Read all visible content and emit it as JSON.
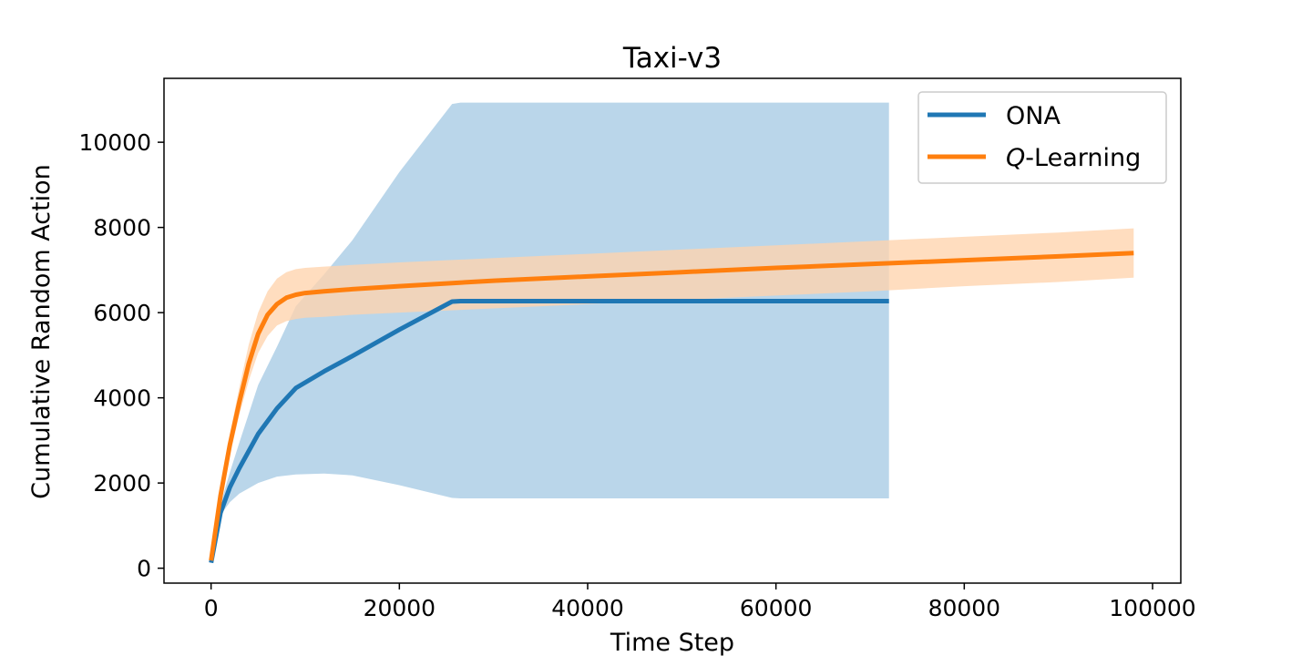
{
  "chart_data": {
    "type": "line",
    "title": "Taxi-v3",
    "xlabel": "Time Step",
    "ylabel": "Cumulative Random Action",
    "xlim": [
      -5000,
      103000
    ],
    "ylim": [
      -350,
      11500
    ],
    "xticks": [
      0,
      20000,
      40000,
      60000,
      80000,
      100000
    ],
    "yticks": [
      0,
      2000,
      4000,
      6000,
      8000,
      10000
    ],
    "legend": "top-right",
    "grid": false,
    "series": [
      {
        "name": "ONA",
        "color": "#1f77b4",
        "band_color": "#bad6ea",
        "x": [
          0,
          1000,
          2000,
          3000,
          5000,
          7000,
          9000,
          12000,
          15000,
          20000,
          25600,
          26500,
          30000,
          40000,
          50000,
          60000,
          72000
        ],
        "y": [
          130,
          1300,
          1900,
          2350,
          3150,
          3750,
          4230,
          4620,
          4980,
          5600,
          6260,
          6270,
          6270,
          6270,
          6270,
          6270,
          6270
        ],
        "lower": [
          130,
          1250,
          1550,
          1750,
          2000,
          2150,
          2200,
          2220,
          2180,
          1950,
          1650,
          1640,
          1640,
          1640,
          1640,
          1640,
          1640
        ],
        "upper": [
          130,
          1500,
          2250,
          2950,
          4300,
          5200,
          6150,
          6900,
          7700,
          9300,
          10900,
          10930,
          10930,
          10930,
          10930,
          10930,
          10930
        ]
      },
      {
        "name": "Q-Learning",
        "color": "#ff7f0e",
        "band_color": "#ffd3ad",
        "x": [
          0,
          1000,
          2000,
          3000,
          4000,
          5000,
          6000,
          7000,
          8000,
          9000,
          10000,
          12000,
          15000,
          20000,
          30000,
          40000,
          50000,
          60000,
          70000,
          80000,
          90000,
          98000
        ],
        "y": [
          180,
          1700,
          2900,
          3900,
          4800,
          5500,
          5950,
          6200,
          6350,
          6420,
          6460,
          6500,
          6550,
          6620,
          6750,
          6850,
          6950,
          7050,
          7140,
          7230,
          7320,
          7400
        ],
        "lower": [
          180,
          1600,
          2650,
          3600,
          4400,
          5050,
          5450,
          5700,
          5800,
          5850,
          5880,
          5900,
          5950,
          6000,
          6100,
          6200,
          6300,
          6400,
          6500,
          6620,
          6720,
          6820
        ],
        "upper": [
          180,
          1850,
          3150,
          4250,
          5250,
          6000,
          6500,
          6800,
          6950,
          7020,
          7050,
          7080,
          7120,
          7180,
          7280,
          7380,
          7480,
          7580,
          7680,
          7780,
          7880,
          7980
        ]
      }
    ]
  }
}
